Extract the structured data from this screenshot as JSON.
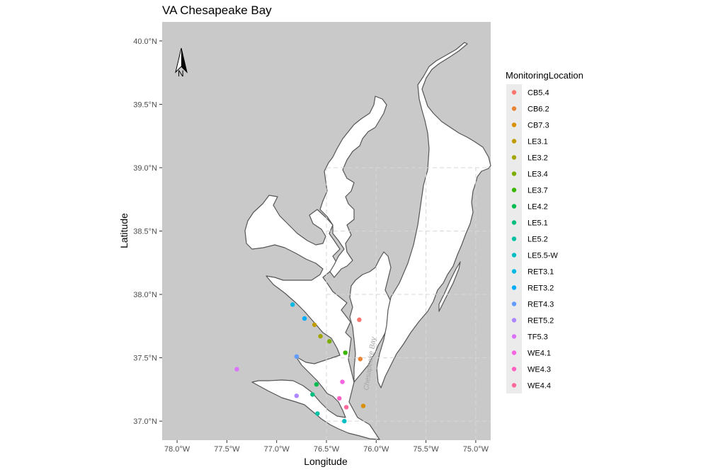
{
  "chart_data": {
    "type": "scatter",
    "title": "VA Chesapeake Bay",
    "xlabel": "Longitude",
    "ylabel": "Latitude",
    "xlim": [
      -78.15,
      -74.85
    ],
    "ylim": [
      36.85,
      40.15
    ],
    "x_ticks": [
      -78.0,
      -77.5,
      -77.0,
      -76.5,
      -76.0,
      -75.5,
      -75.0
    ],
    "x_tick_labels": [
      "78.0°W",
      "77.5°W",
      "77.0°W",
      "76.5°W",
      "76.0°W",
      "75.5°W",
      "75.0°W"
    ],
    "y_ticks": [
      37.0,
      37.5,
      38.0,
      38.5,
      39.0,
      39.5,
      40.0
    ],
    "y_tick_labels": [
      "37.0°N",
      "37.5°N",
      "38.0°N",
      "38.5°N",
      "39.0°N",
      "39.5°N",
      "40.0°N"
    ],
    "legend_title": "MonitoringLocation",
    "legend_position": "right",
    "north_arrow_label": "N",
    "annotation": "Chesapeake Bay",
    "colors": {
      "panel": "#c9c9c9",
      "water": "#ffffff",
      "coast": "#555555",
      "grid": "#d7d7d7",
      "legend_key_bg": "#ebebeb"
    },
    "points": [
      {
        "name": "CB5.4",
        "lon": -76.17,
        "lat": 37.8,
        "color": "#F8766D"
      },
      {
        "name": "CB6.2",
        "lon": -76.16,
        "lat": 37.49,
        "color": "#EA8331"
      },
      {
        "name": "CB7.3",
        "lon": -76.13,
        "lat": 37.12,
        "color": "#D89000"
      },
      {
        "name": "LE3.1",
        "lon": -76.62,
        "lat": 37.76,
        "color": "#C09B00"
      },
      {
        "name": "LE3.2",
        "lon": -76.56,
        "lat": 37.67,
        "color": "#A3A500"
      },
      {
        "name": "LE3.4",
        "lon": -76.47,
        "lat": 37.63,
        "color": "#7CAE00"
      },
      {
        "name": "LE3.7",
        "lon": -76.31,
        "lat": 37.54,
        "color": "#39B600"
      },
      {
        "name": "LE4.2",
        "lon": -76.6,
        "lat": 37.29,
        "color": "#00BB4E"
      },
      {
        "name": "LE5.1",
        "lon": -76.64,
        "lat": 37.21,
        "color": "#00BF7D"
      },
      {
        "name": "LE5.2",
        "lon": -76.59,
        "lat": 37.06,
        "color": "#00C1A3"
      },
      {
        "name": "LE5.5-W",
        "lon": -76.32,
        "lat": 37.0,
        "color": "#00BFC4"
      },
      {
        "name": "RET3.1",
        "lon": -76.84,
        "lat": 37.92,
        "color": "#00B9E3"
      },
      {
        "name": "RET3.2",
        "lon": -76.72,
        "lat": 37.81,
        "color": "#00ADFA"
      },
      {
        "name": "RET4.3",
        "lon": -76.8,
        "lat": 37.51,
        "color": "#619CFF"
      },
      {
        "name": "RET5.2",
        "lon": -76.8,
        "lat": 37.2,
        "color": "#AE87FF"
      },
      {
        "name": "TF5.3",
        "lon": -77.4,
        "lat": 37.41,
        "color": "#DB72FB"
      },
      {
        "name": "WE4.1",
        "lon": -76.34,
        "lat": 37.31,
        "color": "#F564E3"
      },
      {
        "name": "WE4.3",
        "lon": -76.37,
        "lat": 37.18,
        "color": "#FF61C3"
      },
      {
        "name": "WE4.4",
        "lon": -76.3,
        "lat": 37.11,
        "color": "#FF699C"
      }
    ]
  }
}
